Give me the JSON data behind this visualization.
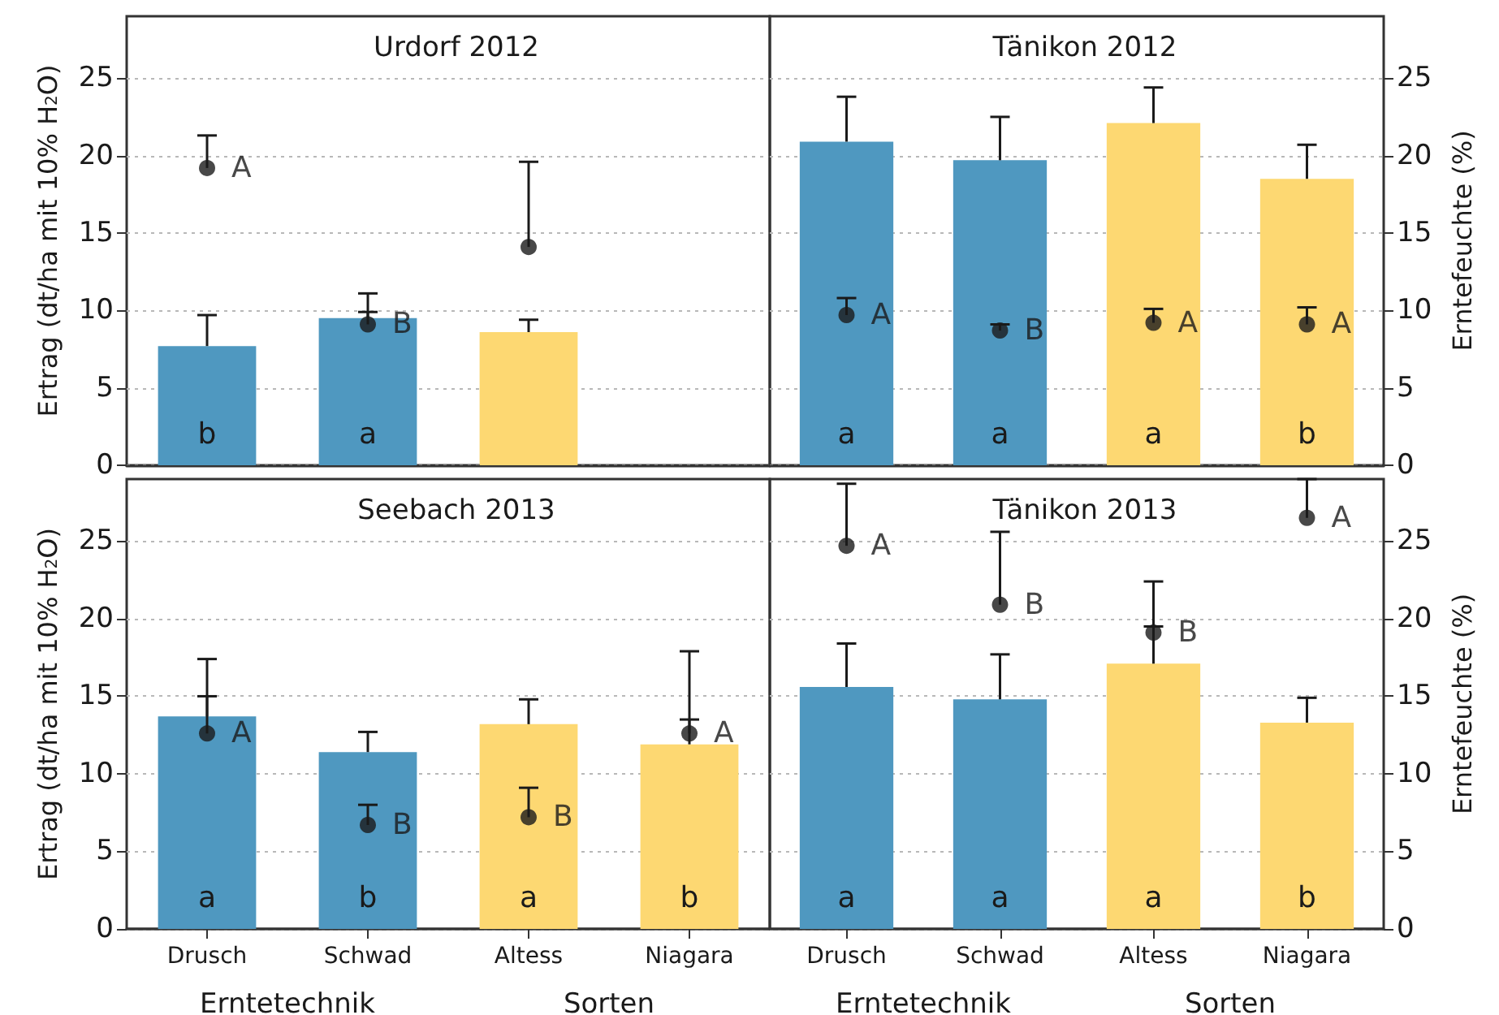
{
  "chart_data": [
    {
      "type": "bar",
      "title": "Urdorf 2012",
      "ylabel": "Ertrag (dt/ha mit 10% H$_{2}$O)",
      "categories": [
        null,
        null,
        null,
        null
      ],
      "ylim": [
        0,
        29
      ],
      "yticks": [
        0,
        5,
        10,
        15,
        20,
        25
      ],
      "tick_labels": "y",
      "grid": "y",
      "series": [
        {
          "type": "bar",
          "colors": [
            "#4f98c0",
            "#4f98c0",
            "#fdd872",
            null
          ],
          "values": [
            7.7,
            9.5,
            8.6,
            null
          ],
          "errors": [
            [
              7.7,
              9.7
            ],
            [
              9.5,
              11.1
            ],
            [
              8.6,
              9.4
            ],
            null
          ],
          "value_labels": [
            "b",
            "a",
            null,
            null
          ]
        },
        {
          "type": "scatter",
          "color": "#1a1a1a",
          "marker": "circle",
          "values": [
            19.2,
            9.1,
            14.1,
            null
          ],
          "errors": [
            [
              19.2,
              21.3
            ],
            [
              9.1,
              9.9
            ],
            [
              14.1,
              19.6
            ],
            null
          ],
          "value_labels": [
            "A",
            "B",
            null,
            null
          ]
        }
      ]
    },
    {
      "type": "bar",
      "title": "Tänikon 2012",
      "y2label": "Erntefeuchte (%)",
      "categories": [
        null,
        null,
        null,
        null
      ],
      "y2lim": [
        0,
        29
      ],
      "y2ticks": [
        0,
        5,
        10,
        15,
        20,
        25
      ],
      "tick_labels": "y2",
      "grid": "y",
      "series": [
        {
          "type": "bar",
          "axis": "y2",
          "colors": [
            "#4f98c0",
            "#4f98c0",
            "#fdd872",
            "#fdd872"
          ],
          "values": [
            20.9,
            19.7,
            22.1,
            18.5
          ],
          "errors": [
            [
              20.9,
              23.8
            ],
            [
              19.7,
              22.5
            ],
            [
              22.1,
              24.4
            ],
            [
              18.5,
              20.7
            ]
          ],
          "value_labels": [
            "a",
            "a",
            "a",
            "b"
          ]
        },
        {
          "type": "scatter",
          "axis": "y2",
          "color": "#1a1a1a",
          "marker": "circle",
          "values": [
            9.7,
            8.7,
            9.2,
            9.1
          ],
          "errors": [
            [
              9.7,
              10.8
            ],
            [
              8.7,
              9.1
            ],
            [
              9.2,
              10.1
            ],
            [
              9.1,
              10.2
            ]
          ],
          "value_labels": [
            "A",
            "B",
            "A",
            "A"
          ]
        }
      ]
    },
    {
      "type": "bar",
      "title": "Seebach 2013",
      "ylabel": "Ertrag (dt/ha mit 10% H$_{2}$O)",
      "categories": [
        "Drusch",
        "Schwad",
        "Altess",
        "Niagara"
      ],
      "ylim": [
        0,
        29
      ],
      "yticks": [
        0,
        5,
        10,
        15,
        20,
        25
      ],
      "tick_labels": "xy",
      "grid": "y",
      "series": [
        {
          "type": "bar",
          "colors": [
            "#4f98c0",
            "#4f98c0",
            "#fdd872",
            "#fdd872"
          ],
          "values": [
            13.7,
            11.4,
            13.2,
            11.9
          ],
          "errors": [
            [
              13.7,
              15.0
            ],
            [
              11.4,
              12.7
            ],
            [
              13.2,
              14.8
            ],
            [
              11.9,
              13.5
            ]
          ],
          "value_labels": [
            "a",
            "b",
            "a",
            "b"
          ]
        },
        {
          "type": "scatter",
          "color": "#1a1a1a",
          "marker": "circle",
          "values": [
            12.6,
            6.7,
            7.2,
            12.6
          ],
          "errors": [
            [
              12.6,
              17.4
            ],
            [
              6.7,
              8.0
            ],
            [
              7.2,
              9.1
            ],
            [
              12.6,
              17.9
            ]
          ],
          "value_labels": [
            "A",
            "B",
            "B",
            "A"
          ]
        }
      ],
      "annotations": [
        "Erntetechnik",
        "Sorten"
      ]
    },
    {
      "type": "bar",
      "title": "Tänikon 2013",
      "y2label": "Erntefeuchte (%)",
      "categories": [
        "Drusch",
        "Schwad",
        "Altess",
        "Niagara"
      ],
      "y2lim": [
        0,
        29
      ],
      "y2ticks": [
        0,
        5,
        10,
        15,
        20,
        25
      ],
      "tick_labels": "xy2",
      "grid": "y",
      "series": [
        {
          "type": "bar",
          "axis": "y2",
          "colors": [
            "#4f98c0",
            "#4f98c0",
            "#fdd872",
            "#fdd872"
          ],
          "values": [
            15.6,
            14.8,
            17.1,
            13.3
          ],
          "errors": [
            [
              15.6,
              18.4
            ],
            [
              14.8,
              17.7
            ],
            [
              17.1,
              19.5
            ],
            [
              13.3,
              14.9
            ]
          ],
          "value_labels": [
            "a",
            "a",
            "a",
            "b"
          ]
        },
        {
          "type": "scatter",
          "axis": "y2",
          "color": "#1a1a1a",
          "marker": "circle",
          "values": [
            24.7,
            20.9,
            19.1,
            26.5
          ],
          "errors": [
            [
              24.7,
              28.7
            ],
            [
              20.9,
              25.6
            ],
            [
              19.1,
              22.4
            ],
            [
              26.5,
              29.0
            ]
          ],
          "value_labels": [
            "A",
            "B",
            "B",
            "A"
          ]
        }
      ],
      "annotations": [
        "Erntetechnik",
        "Sorten"
      ]
    }
  ]
}
